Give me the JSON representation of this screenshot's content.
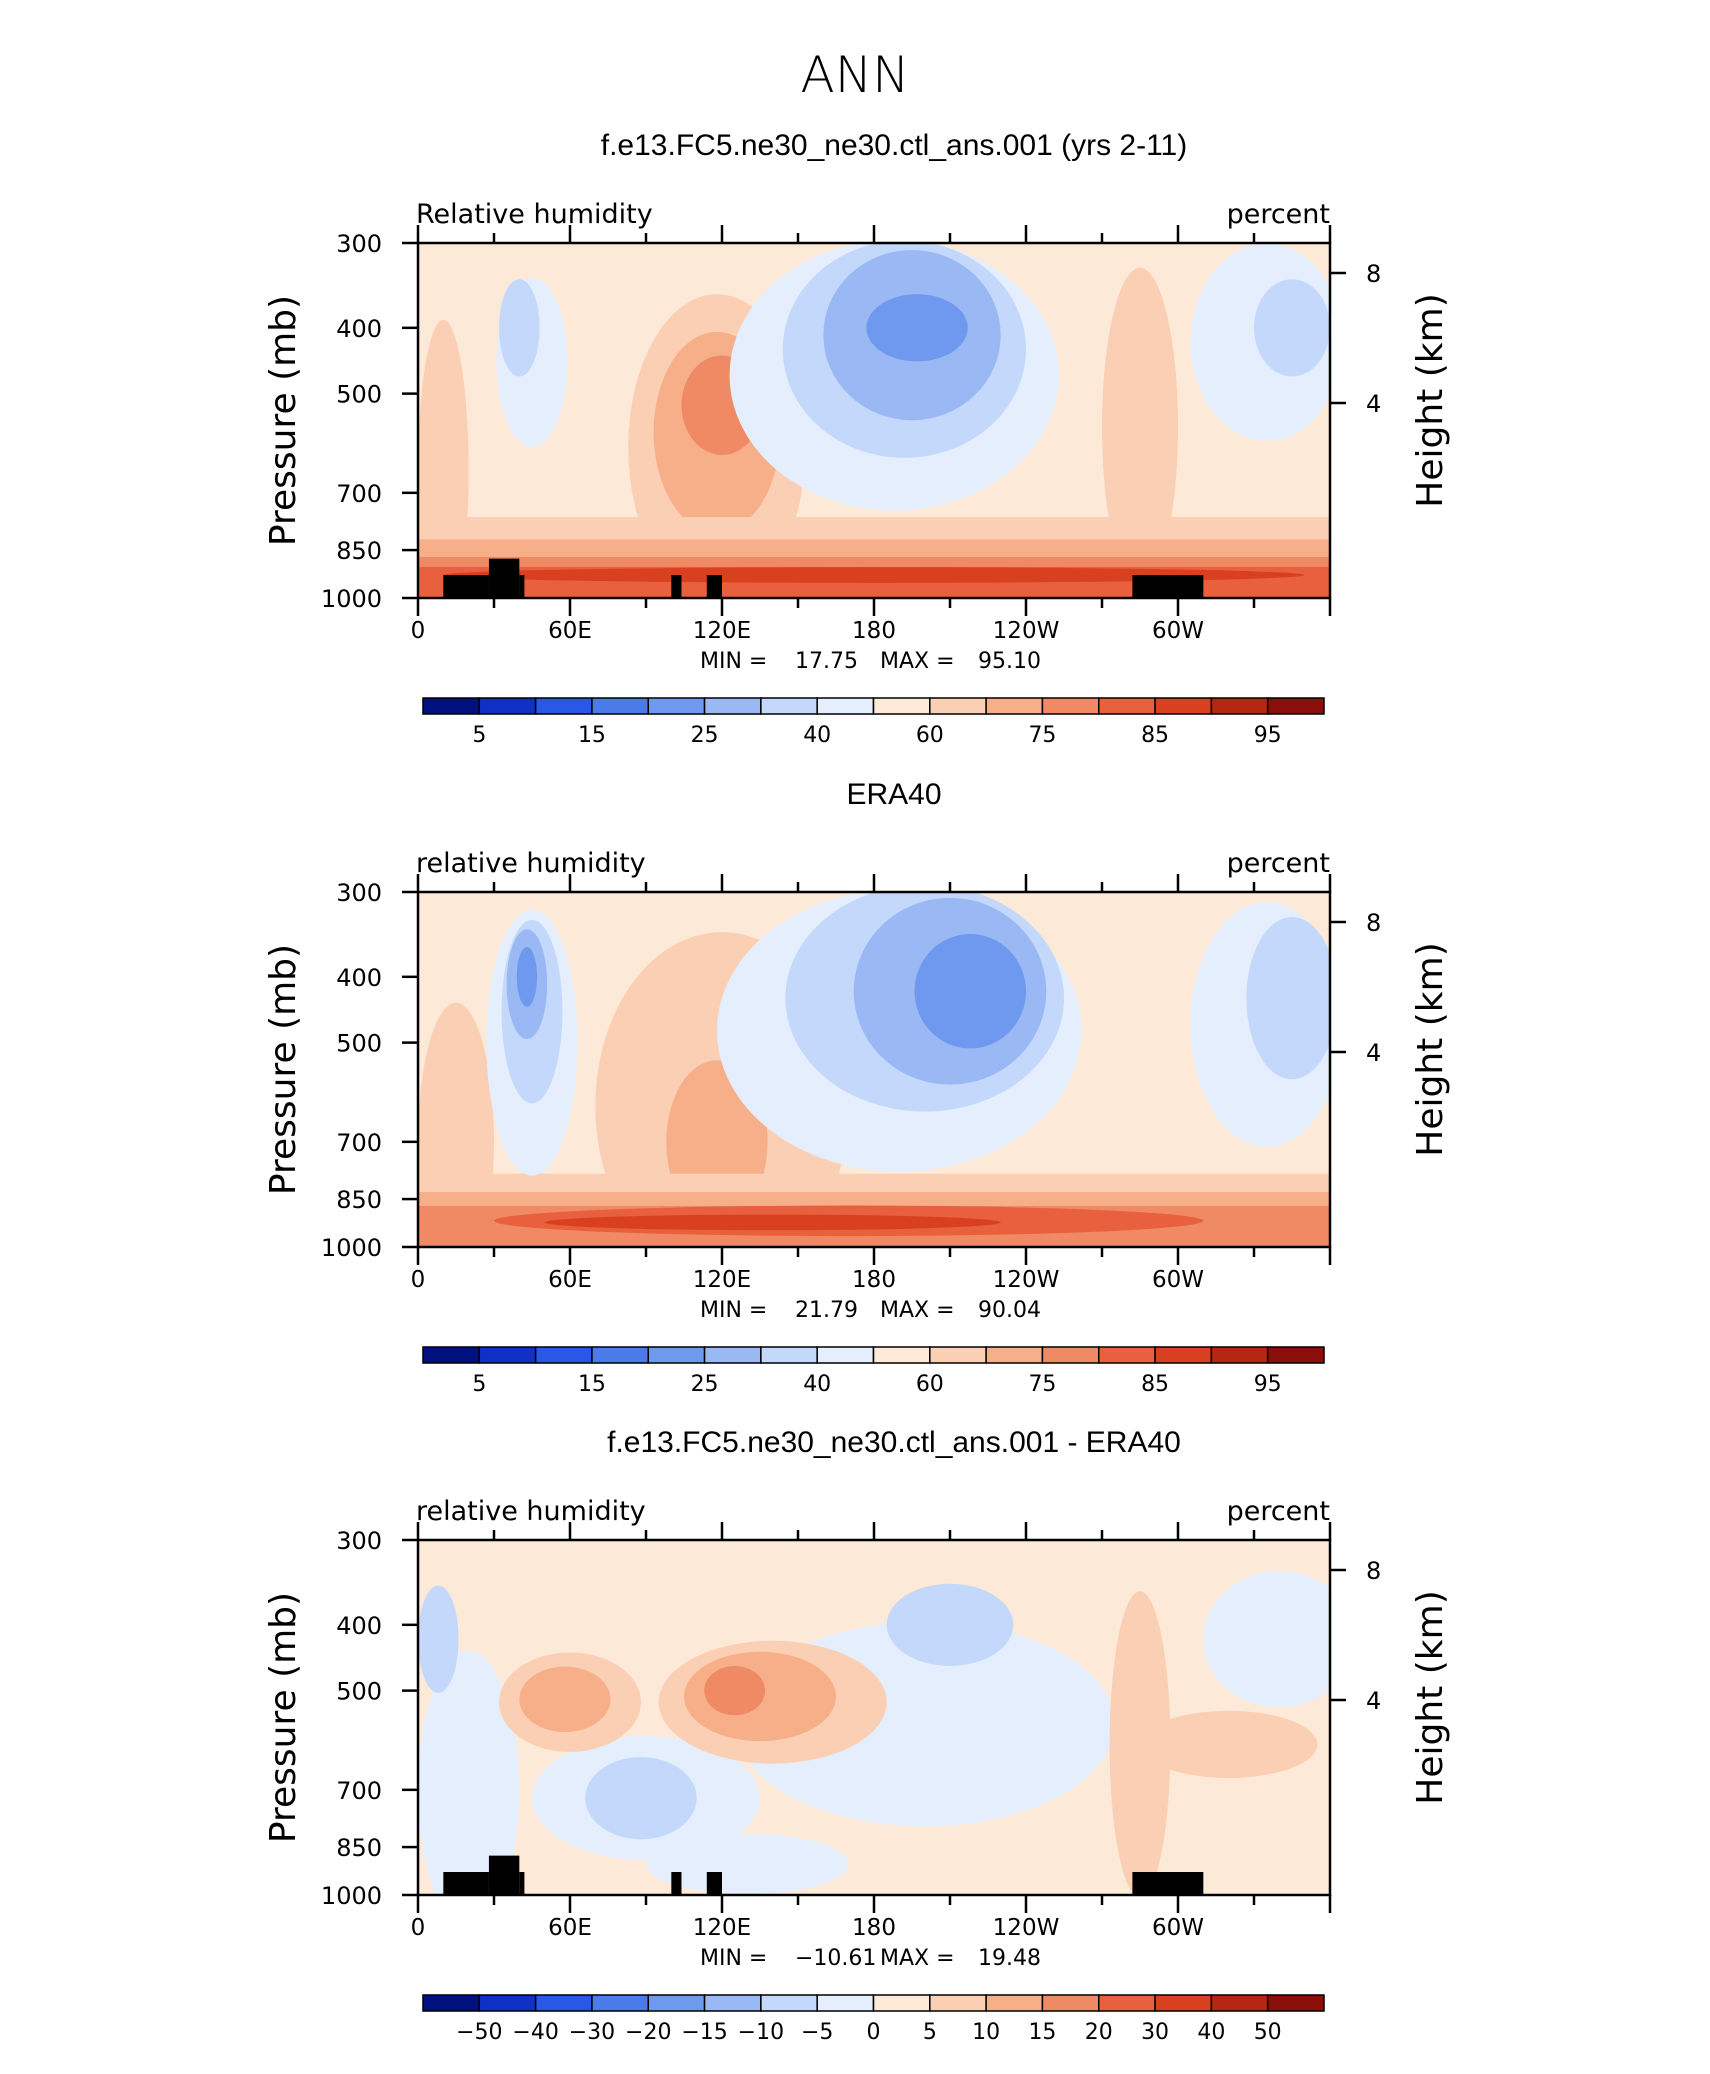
{
  "figure": {
    "title": "ANN"
  },
  "chart_data": [
    {
      "type": "heatmap",
      "title": "f.e13.FC5.ne30_ne30.ctl_ans.001 (yrs 2-11)",
      "left_string": "Relative  humidity",
      "right_string": "percent",
      "ylabel": "Pressure  (mb)",
      "y2label": "Height  (km)",
      "x_ticks": [
        "0",
        "60E",
        "120E",
        "180",
        "120W",
        "60W"
      ],
      "y_ticks": [
        "300",
        "400",
        "500",
        "700",
        "850",
        "1000"
      ],
      "y2_ticks": [
        "8",
        "4"
      ],
      "stats": {
        "min_label": "MIN =",
        "min": "17.75",
        "max_label": "MAX =",
        "max": "95.10"
      },
      "colorbar_labels": [
        "5",
        "15",
        "25",
        "40",
        "60",
        "75",
        "85",
        "95"
      ],
      "colorbar_colors": [
        "#00107e",
        "#1030c8",
        "#2958e6",
        "#4a7be8",
        "#6f99ee",
        "#9ab8f4",
        "#c3d8fa",
        "#e4eefc",
        "#fde9d8",
        "#fbcfb4",
        "#f7af8a",
        "#f08a64",
        "#e8603e",
        "#d8401f",
        "#b52713",
        "#8a0f0b"
      ],
      "contours": [
        {
          "level": "55",
          "color": "#fde9d8",
          "x": [
            0,
            360
          ],
          "y": [
            1000,
            300
          ],
          "rect": true
        },
        {
          "level": "65",
          "color": "#fbcfb4",
          "cx": 10,
          "cy": 650,
          "rx": 10,
          "ry": 300
        },
        {
          "level": "65",
          "color": "#fbcfb4",
          "cx": 118,
          "cy": 600,
          "rx": 35,
          "ry": 280
        },
        {
          "level": "65",
          "color": "#fbcfb4",
          "cx": 285,
          "cy": 560,
          "rx": 15,
          "ry": 300
        },
        {
          "level": "70",
          "color": "#f7af8a",
          "cx": 118,
          "cy": 570,
          "rx": 25,
          "ry": 180
        },
        {
          "level": "75",
          "color": "#f08a64",
          "cx": 120,
          "cy": 520,
          "rx": 16,
          "ry": 80
        },
        {
          "level": "65",
          "color": "#fbcfb4",
          "band": true,
          "y": [
            1000,
            760
          ]
        },
        {
          "level": "70",
          "color": "#f7af8a",
          "band": true,
          "y": [
            1000,
            820
          ]
        },
        {
          "level": "75",
          "color": "#f08a64",
          "band": true,
          "y": [
            1000,
            870
          ]
        },
        {
          "level": "80",
          "color": "#e8603e",
          "band": true,
          "y": [
            1000,
            900
          ]
        },
        {
          "level": "85",
          "color": "#d8401f",
          "cx": 180,
          "cy": 925,
          "rx": 170,
          "ry": 12
        },
        {
          "level": "50",
          "color": "#e4eefc",
          "cx": 188,
          "cy": 470,
          "rx": 65,
          "ry": 260
        },
        {
          "level": "40",
          "color": "#c3d8fa",
          "cx": 192,
          "cy": 430,
          "rx": 48,
          "ry": 180
        },
        {
          "level": "30",
          "color": "#9ab8f4",
          "cx": 195,
          "cy": 410,
          "rx": 35,
          "ry": 110
        },
        {
          "level": "20",
          "color": "#6f99ee",
          "cx": 197,
          "cy": 400,
          "rx": 20,
          "ry": 40
        },
        {
          "level": "50",
          "color": "#e4eefc",
          "cx": 45,
          "cy": 450,
          "rx": 14,
          "ry": 120
        },
        {
          "level": "40",
          "color": "#c3d8fa",
          "cx": 40,
          "cy": 400,
          "rx": 8,
          "ry": 60
        },
        {
          "level": "50",
          "color": "#e4eefc",
          "cx": 335,
          "cy": 420,
          "rx": 30,
          "ry": 150
        },
        {
          "level": "40",
          "color": "#c3d8fa",
          "cx": 345,
          "cy": 400,
          "rx": 15,
          "ry": 60
        }
      ],
      "terrain": true
    },
    {
      "type": "heatmap",
      "title": "ERA40",
      "left_string": "relative  humidity",
      "right_string": "percent",
      "ylabel": "Pressure  (mb)",
      "y2label": "Height  (km)",
      "x_ticks": [
        "0",
        "60E",
        "120E",
        "180",
        "120W",
        "60W"
      ],
      "y_ticks": [
        "300",
        "400",
        "500",
        "700",
        "850",
        "1000"
      ],
      "y2_ticks": [
        "8",
        "4"
      ],
      "stats": {
        "min_label": "MIN =",
        "min": "21.79",
        "max_label": "MAX =",
        "max": "90.04"
      },
      "colorbar_labels": [
        "5",
        "15",
        "25",
        "40",
        "60",
        "75",
        "85",
        "95"
      ],
      "colorbar_colors": [
        "#00107e",
        "#1030c8",
        "#2958e6",
        "#4a7be8",
        "#6f99ee",
        "#9ab8f4",
        "#c3d8fa",
        "#e4eefc",
        "#fde9d8",
        "#fbcfb4",
        "#f7af8a",
        "#f08a64",
        "#e8603e",
        "#d8401f",
        "#b52713",
        "#8a0f0b"
      ],
      "contours": [
        {
          "level": "55",
          "color": "#fde9d8",
          "x": [
            0,
            360
          ],
          "y": [
            1000,
            300
          ],
          "rect": true
        },
        {
          "level": "65",
          "color": "#fbcfb4",
          "cx": 120,
          "cy": 620,
          "rx": 50,
          "ry": 330
        },
        {
          "level": "65",
          "color": "#fbcfb4",
          "cx": 15,
          "cy": 700,
          "rx": 15,
          "ry": 300
        },
        {
          "level": "70",
          "color": "#f7af8a",
          "cx": 118,
          "cy": 700,
          "rx": 20,
          "ry": 180
        },
        {
          "level": "65",
          "color": "#fbcfb4",
          "band": true,
          "y": [
            1000,
            780
          ]
        },
        {
          "level": "70",
          "color": "#f7af8a",
          "band": true,
          "y": [
            1000,
            830
          ]
        },
        {
          "level": "75",
          "color": "#f08a64",
          "band": true,
          "y": [
            1000,
            870
          ]
        },
        {
          "level": "80",
          "color": "#e8603e",
          "cx": 170,
          "cy": 915,
          "rx": 140,
          "ry": 35
        },
        {
          "level": "85",
          "color": "#d8401f",
          "cx": 140,
          "cy": 920,
          "rx": 90,
          "ry": 12
        },
        {
          "level": "50",
          "color": "#e4eefc",
          "cx": 190,
          "cy": 480,
          "rx": 72,
          "ry": 280
        },
        {
          "level": "40",
          "color": "#c3d8fa",
          "cx": 200,
          "cy": 430,
          "rx": 55,
          "ry": 200
        },
        {
          "level": "30",
          "color": "#9ab8f4",
          "cx": 210,
          "cy": 420,
          "rx": 38,
          "ry": 130
        },
        {
          "level": "20",
          "color": "#6f99ee",
          "cx": 218,
          "cy": 420,
          "rx": 22,
          "ry": 75
        },
        {
          "level": "50",
          "color": "#e4eefc",
          "cx": 45,
          "cy": 500,
          "rx": 18,
          "ry": 220
        },
        {
          "level": "40",
          "color": "#c3d8fa",
          "cx": 45,
          "cy": 450,
          "rx": 12,
          "ry": 130
        },
        {
          "level": "30",
          "color": "#9ab8f4",
          "cx": 43,
          "cy": 410,
          "rx": 8,
          "ry": 70
        },
        {
          "level": "20",
          "color": "#6f99ee",
          "cx": 43,
          "cy": 400,
          "rx": 4,
          "ry": 35
        },
        {
          "level": "50",
          "color": "#e4eefc",
          "cx": 335,
          "cy": 470,
          "rx": 30,
          "ry": 200
        },
        {
          "level": "40",
          "color": "#c3d8fa",
          "cx": 345,
          "cy": 430,
          "rx": 18,
          "ry": 110
        }
      ],
      "terrain": false
    },
    {
      "type": "heatmap",
      "title": "f.e13.FC5.ne30_ne30.ctl_ans.001 - ERA40",
      "left_string": "relative  humidity",
      "right_string": "percent",
      "ylabel": "Pressure  (mb)",
      "y2label": "Height  (km)",
      "x_ticks": [
        "0",
        "60E",
        "120E",
        "180",
        "120W",
        "60W"
      ],
      "y_ticks": [
        "300",
        "400",
        "500",
        "700",
        "850",
        "1000"
      ],
      "y2_ticks": [
        "8",
        "4"
      ],
      "stats": {
        "min_label": "MIN =",
        "min": "−10.61",
        "max_label": "MAX =",
        "max": "19.48"
      },
      "colorbar_labels": [
        "−50",
        "−40",
        "−30",
        "−20",
        "−15",
        "−10",
        "−5",
        "0",
        "5",
        "10",
        "15",
        "20",
        "30",
        "40",
        "50"
      ],
      "colorbar_colors": [
        "#00107e",
        "#1030c8",
        "#2958e6",
        "#4a7be8",
        "#6f99ee",
        "#9ab8f4",
        "#c3d8fa",
        "#e4eefc",
        "#fde9d8",
        "#fbcfb4",
        "#f7af8a",
        "#f08a64",
        "#e8603e",
        "#d8401f",
        "#b52713",
        "#8a0f0b"
      ],
      "contours": [
        {
          "level": "2",
          "color": "#fde9d8",
          "x": [
            0,
            360
          ],
          "y": [
            1000,
            300
          ],
          "rect": true
        },
        {
          "level": "-2",
          "color": "#e4eefc",
          "cx": 200,
          "cy": 560,
          "rx": 75,
          "ry": 180
        },
        {
          "level": "-2",
          "color": "#e4eefc",
          "cx": 90,
          "cy": 720,
          "rx": 45,
          "ry": 140
        },
        {
          "level": "-5",
          "color": "#c3d8fa",
          "cx": 88,
          "cy": 720,
          "rx": 22,
          "ry": 90
        },
        {
          "level": "-2",
          "color": "#e4eefc",
          "cx": 130,
          "cy": 900,
          "rx": 40,
          "ry": 80
        },
        {
          "level": "-2",
          "color": "#e4eefc",
          "cx": 20,
          "cy": 700,
          "rx": 20,
          "ry": 300
        },
        {
          "level": "-5",
          "color": "#c3d8fa",
          "cx": 8,
          "cy": 420,
          "rx": 8,
          "ry": 70
        },
        {
          "level": "-5",
          "color": "#c3d8fa",
          "cx": 210,
          "cy": 400,
          "rx": 25,
          "ry": 50
        },
        {
          "level": "-5",
          "color": "#c3d8fa",
          "cx": 340,
          "cy": 420,
          "rx": 20,
          "ry": 50
        },
        {
          "level": "-2",
          "color": "#e4eefc",
          "cx": 340,
          "cy": 420,
          "rx": 30,
          "ry": 90
        },
        {
          "level": "7",
          "color": "#fbcfb4",
          "cx": 140,
          "cy": 520,
          "rx": 45,
          "ry": 100
        },
        {
          "level": "7",
          "color": "#fbcfb4",
          "cx": 60,
          "cy": 520,
          "rx": 28,
          "ry": 80
        },
        {
          "level": "7",
          "color": "#fbcfb4",
          "cx": 285,
          "cy": 600,
          "rx": 12,
          "ry": 280
        },
        {
          "level": "7",
          "color": "#fbcfb4",
          "cx": 320,
          "cy": 600,
          "rx": 35,
          "ry": 60
        },
        {
          "level": "12",
          "color": "#f7af8a",
          "cx": 135,
          "cy": 510,
          "rx": 30,
          "ry": 70
        },
        {
          "level": "12",
          "color": "#f7af8a",
          "cx": 58,
          "cy": 515,
          "rx": 18,
          "ry": 50
        },
        {
          "level": "17",
          "color": "#f08a64",
          "cx": 125,
          "cy": 500,
          "rx": 12,
          "ry": 35
        }
      ],
      "terrain": true
    }
  ]
}
